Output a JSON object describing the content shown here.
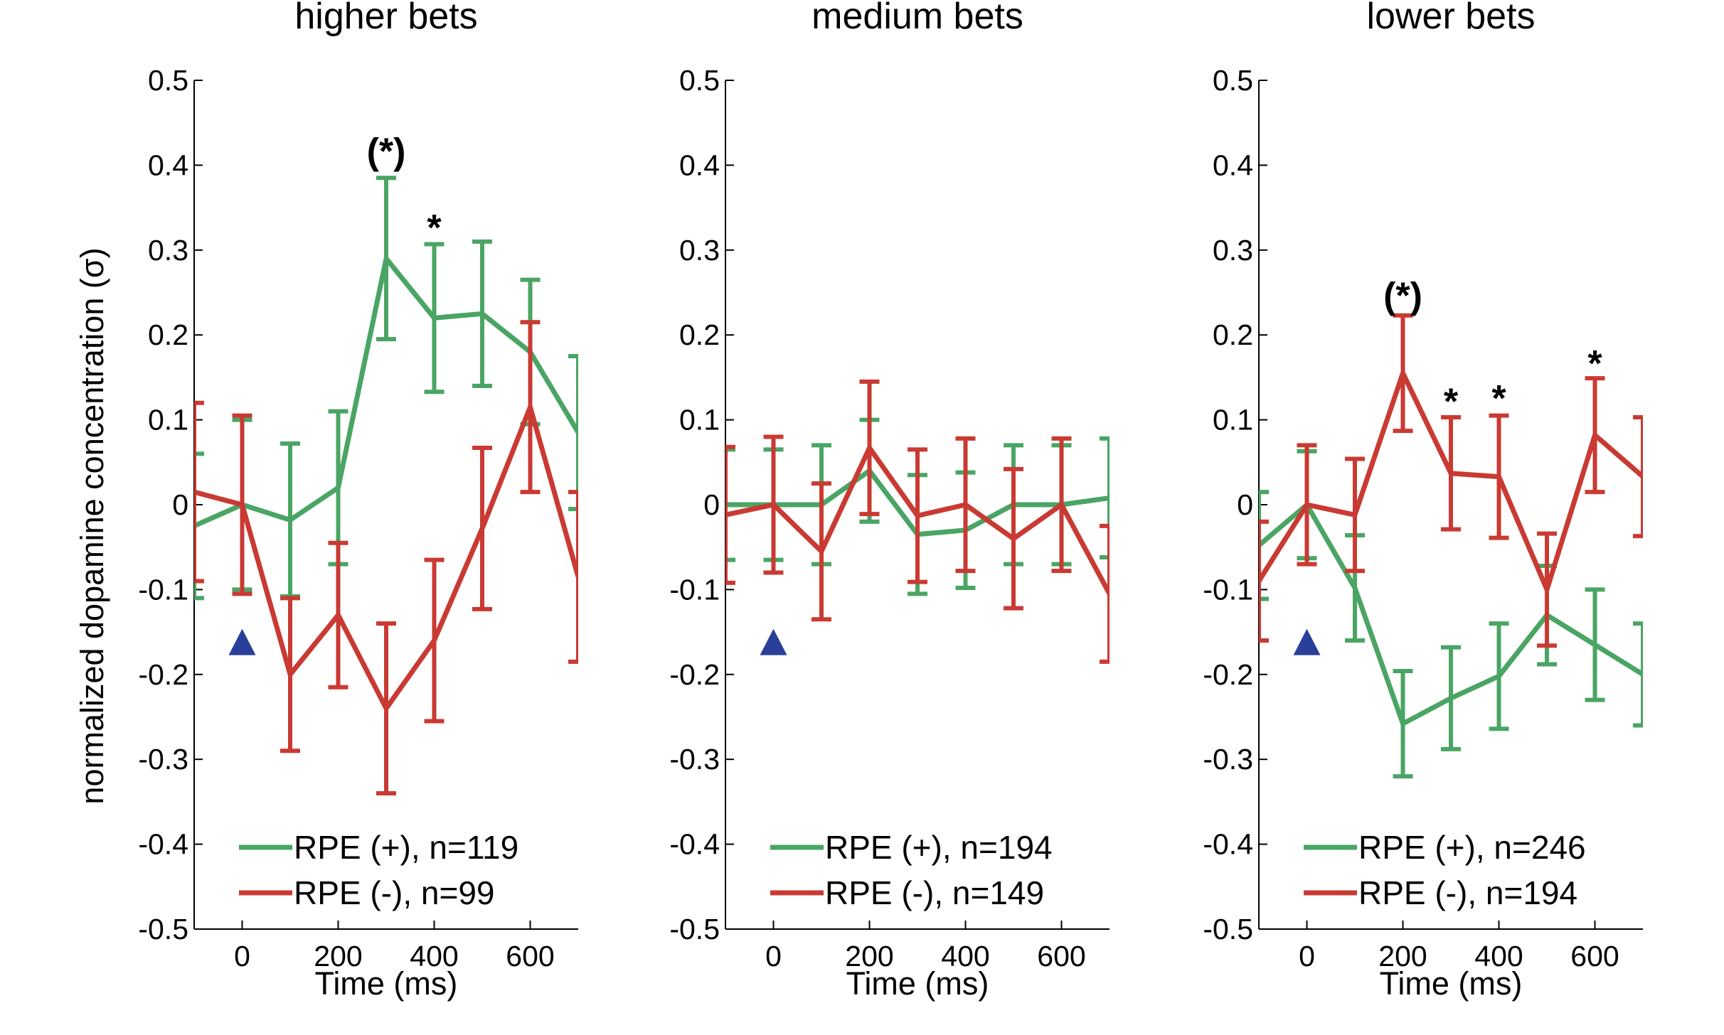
{
  "figure": {
    "ylabel": "normalized dopamine concentration (σ)",
    "colors": {
      "positive": "#4aa564",
      "negative": "#c93a33",
      "marker": "#2a3f9a"
    }
  },
  "chart_data": [
    {
      "type": "line",
      "title": "higher bets",
      "xlabel": "Time (ms)",
      "ylabel": "normalized dopamine concentration (σ)",
      "xlim": [
        -100,
        700
      ],
      "ylim": [
        -0.5,
        0.5
      ],
      "xticks": [
        0,
        200,
        400,
        600
      ],
      "yticks": [
        -0.5,
        -0.4,
        -0.3,
        -0.2,
        -0.1,
        0,
        0.1,
        0.2,
        0.3,
        0.4,
        0.5
      ],
      "ytick_labels": [
        "-0.5",
        "-0.4",
        "-0.3",
        "-0.2",
        "-0.1",
        "0",
        "0.1",
        "0.2",
        "0.3",
        "0.4",
        "0.5"
      ],
      "x": [
        -100,
        0,
        100,
        200,
        300,
        400,
        500,
        600,
        700
      ],
      "series": [
        {
          "name": "RPE (+), n=119",
          "color": "#4aa564",
          "y": [
            -0.025,
            0.0,
            -0.018,
            0.02,
            0.29,
            0.22,
            0.225,
            0.18,
            0.085
          ],
          "err": [
            0.085,
            0.1,
            0.09,
            0.09,
            0.095,
            0.087,
            0.085,
            0.085,
            0.09
          ]
        },
        {
          "name": "RPE (-), n=99",
          "color": "#c93a33",
          "y": [
            0.015,
            0.0,
            -0.2,
            -0.13,
            -0.24,
            -0.16,
            -0.028,
            0.115,
            -0.085
          ],
          "err": [
            0.105,
            0.105,
            0.09,
            0.085,
            0.1,
            0.095,
            0.095,
            0.1,
            0.1
          ]
        }
      ],
      "annotations": [
        {
          "text": "(*)",
          "x": 300,
          "y": 0.415
        },
        {
          "text": "*",
          "x": 400,
          "y": 0.325
        }
      ],
      "marker_x": 0,
      "marker_y": -0.163,
      "legend": "bottom"
    },
    {
      "type": "line",
      "title": "medium bets",
      "xlabel": "Time (ms)",
      "ylabel": "",
      "xlim": [
        -100,
        700
      ],
      "ylim": [
        -0.5,
        0.5
      ],
      "xticks": [
        0,
        200,
        400,
        600
      ],
      "yticks": [
        -0.5,
        -0.4,
        -0.3,
        -0.2,
        -0.1,
        0,
        0.1,
        0.2,
        0.3,
        0.4,
        0.5
      ],
      "ytick_labels": [
        "-0.5",
        "-0.4",
        "-0.3",
        "-0.2",
        "-0.1",
        "0",
        "0.1",
        "0.2",
        "0.3",
        "0.4",
        "0.5"
      ],
      "x": [
        -100,
        0,
        100,
        200,
        300,
        400,
        500,
        600,
        700
      ],
      "series": [
        {
          "name": "RPE (+), n=194",
          "color": "#4aa564",
          "y": [
            0.0,
            0.0,
            0.0,
            0.04,
            -0.035,
            -0.03,
            0.0,
            0.0,
            0.008
          ],
          "err": [
            0.065,
            0.065,
            0.07,
            0.06,
            0.07,
            0.068,
            0.07,
            0.07,
            0.07
          ]
        },
        {
          "name": "RPE (-), n=149",
          "color": "#c93a33",
          "y": [
            -0.012,
            0.0,
            -0.055,
            0.067,
            -0.013,
            0.0,
            -0.04,
            0.0,
            -0.105
          ],
          "err": [
            0.08,
            0.08,
            0.08,
            0.078,
            0.078,
            0.078,
            0.082,
            0.078,
            0.08
          ]
        }
      ],
      "annotations": [],
      "marker_x": 0,
      "marker_y": -0.163,
      "legend": "bottom"
    },
    {
      "type": "line",
      "title": "lower bets",
      "xlabel": "Time (ms)",
      "ylabel": "",
      "xlim": [
        -100,
        700
      ],
      "ylim": [
        -0.5,
        0.5
      ],
      "xticks": [
        0,
        200,
        400,
        600
      ],
      "yticks": [
        -0.5,
        -0.4,
        -0.3,
        -0.2,
        -0.1,
        0,
        0.1,
        0.2,
        0.3,
        0.4,
        0.5
      ],
      "ytick_labels": [
        "-0.5",
        "-0.4",
        "-0.3",
        "-0.2",
        "-0.1",
        "0",
        "0.1",
        "0.2",
        "0.3",
        "0.4",
        "0.5"
      ],
      "x": [
        -100,
        0,
        100,
        200,
        300,
        400,
        500,
        600,
        700
      ],
      "series": [
        {
          "name": "RPE (+), n=246",
          "color": "#4aa564",
          "y": [
            -0.048,
            0.0,
            -0.098,
            -0.258,
            -0.228,
            -0.202,
            -0.13,
            -0.165,
            -0.2
          ],
          "err": [
            0.063,
            0.063,
            0.062,
            0.062,
            0.06,
            0.062,
            0.058,
            0.065,
            0.06
          ]
        },
        {
          "name": "RPE (-), n=194",
          "color": "#c93a33",
          "y": [
            -0.09,
            0.0,
            -0.012,
            0.155,
            0.037,
            0.033,
            -0.1,
            0.082,
            0.033
          ],
          "err": [
            0.07,
            0.07,
            0.066,
            0.068,
            0.066,
            0.072,
            0.066,
            0.067,
            0.07
          ]
        }
      ],
      "annotations": [
        {
          "text": "(*)",
          "x": 200,
          "y": 0.245
        },
        {
          "text": "*",
          "x": 300,
          "y": 0.12
        },
        {
          "text": "*",
          "x": 400,
          "y": 0.124
        },
        {
          "text": "*",
          "x": 600,
          "y": 0.165
        }
      ],
      "marker_x": 0,
      "marker_y": -0.163,
      "legend": "bottom"
    }
  ]
}
